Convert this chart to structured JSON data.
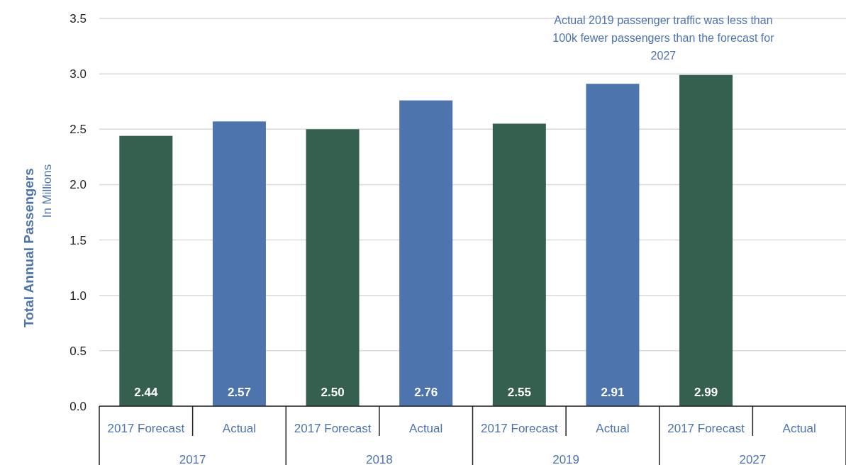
{
  "chart_data": {
    "type": "bar",
    "ylabel": "Total Annual Passengers\nIn Millions",
    "categories": [
      "2017 Forecast",
      "Actual",
      "2017 Forecast",
      "Actual",
      "2017 Forecast",
      "Actual",
      "2017 Forecast",
      "Actual"
    ],
    "values": [
      2.44,
      2.57,
      2.5,
      2.76,
      2.55,
      2.91,
      2.99,
      null
    ],
    "colors": [
      "#356050",
      "#4d74ad",
      "#356050",
      "#4d74ad",
      "#356050",
      "#4d74ad",
      "#356050",
      null
    ],
    "value_labels": [
      "2.44",
      "2.57",
      "2.50",
      "2.76",
      "2.55",
      "2.91",
      "2.99",
      null
    ],
    "ylim": [
      0,
      3.5
    ],
    "yticks": [
      {
        "value": 0,
        "label": "0.0"
      },
      {
        "value": 0.5,
        "label": "0.5"
      },
      {
        "value": 1,
        "label": "1.0"
      },
      {
        "value": 1.5,
        "label": "1.5"
      },
      {
        "value": 2,
        "label": "2.0"
      },
      {
        "value": 2.5,
        "label": "2.5"
      },
      {
        "value": 3,
        "label": "3.0"
      },
      {
        "value": 3.5,
        "label": "3.5"
      }
    ],
    "grid": "y",
    "annotations": [
      "Actual 2019 passenger traffic was less than\n100k fewer passengers than the forecast for\n2027",
      "2017",
      "2018",
      "2019",
      "2027"
    ]
  }
}
